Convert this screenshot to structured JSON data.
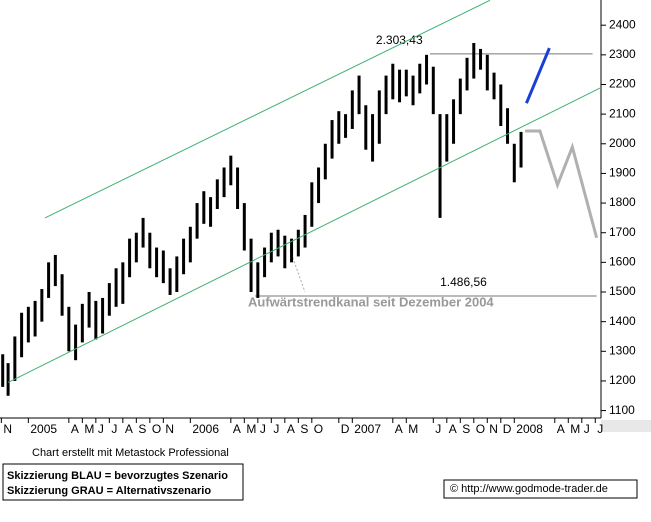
{
  "chart_data": {
    "type": "range_bar",
    "color": "#000000",
    "x": [
      -1.9,
      -1.5,
      -1.0,
      -0.5,
      0,
      0.5,
      1.0,
      1.5,
      2.0,
      2.5,
      3.0,
      3.5,
      4.0,
      4.5,
      5.0,
      5.5,
      6.0,
      6.5,
      7.0,
      7.5,
      8.0,
      8.5,
      9.0,
      9.5,
      10.0,
      10.5,
      11.0,
      11.5,
      12.0,
      12.5,
      13.0,
      13.5,
      14.0,
      14.5,
      15.0,
      15.5,
      16.0,
      16.5,
      17.0,
      17.5,
      18.0,
      18.5,
      19.0,
      19.5,
      20.0,
      20.5,
      21.0,
      21.5,
      22.0,
      22.5,
      23.0,
      23.5,
      24.0,
      24.5,
      25.0,
      25.5,
      26.0,
      26.5,
      27.0,
      27.5,
      28.0,
      28.5,
      29.0,
      29.5,
      30.0,
      30.5,
      31.0,
      31.5,
      32.0,
      32.5,
      33.0,
      33.5,
      34.0,
      34.5,
      35.0,
      35.5,
      36.0,
      36.5
    ],
    "low": [
      1180,
      1150,
      1200,
      1280,
      1330,
      1350,
      1400,
      1480,
      1520,
      1420,
      1300,
      1270,
      1330,
      1380,
      1340,
      1360,
      1420,
      1450,
      1460,
      1550,
      1600,
      1650,
      1580,
      1550,
      1530,
      1490,
      1500,
      1560,
      1600,
      1680,
      1730,
      1720,
      1780,
      1820,
      1860,
      1780,
      1640,
      1500,
      1480,
      1550,
      1600,
      1620,
      1580,
      1600,
      1620,
      1650,
      1720,
      1800,
      1880,
      1950,
      2000,
      2020,
      2050,
      2100,
      1980,
      1940,
      2000,
      2100,
      2150,
      2140,
      2160,
      2130,
      2170,
      2200,
      2100,
      1750,
      1940,
      2000,
      2100,
      2180,
      2220,
      2250,
      2180,
      2150,
      2060,
      2000,
      1870,
      1920
    ],
    "high": [
      1290,
      1260,
      1350,
      1430,
      1450,
      1470,
      1510,
      1600,
      1625,
      1560,
      1450,
      1390,
      1460,
      1500,
      1470,
      1480,
      1530,
      1580,
      1600,
      1680,
      1700,
      1750,
      1700,
      1650,
      1640,
      1580,
      1620,
      1680,
      1720,
      1800,
      1840,
      1820,
      1880,
      1920,
      1960,
      1920,
      1800,
      1680,
      1600,
      1650,
      1700,
      1710,
      1690,
      1680,
      1710,
      1760,
      1870,
      1920,
      2000,
      2080,
      2110,
      2100,
      2180,
      2230,
      2130,
      2100,
      2180,
      2230,
      2270,
      2250,
      2250,
      2230,
      2270,
      2300,
      2260,
      2100,
      2100,
      2150,
      2220,
      2290,
      2340,
      2320,
      2300,
      2240,
      2200,
      2120,
      2000,
      2040
    ],
    "xlim": [
      -2.1,
      42.35
    ],
    "ylim": [
      1075,
      2485
    ],
    "xticks": [
      {
        "value": -2,
        "label": "N"
      },
      {
        "value": 0,
        "label": "2005"
      },
      {
        "value": 3,
        "label": "A"
      },
      {
        "value": 4,
        "label": "M"
      },
      {
        "value": 5,
        "label": "J"
      },
      {
        "value": 6,
        "label": "J"
      },
      {
        "value": 7,
        "label": "A"
      },
      {
        "value": 8,
        "label": "S"
      },
      {
        "value": 9,
        "label": "O"
      },
      {
        "value": 10,
        "label": "N"
      },
      {
        "value": 12,
        "label": "2006"
      },
      {
        "value": 15,
        "label": "A"
      },
      {
        "value": 16,
        "label": "M"
      },
      {
        "value": 17,
        "label": "J"
      },
      {
        "value": 18,
        "label": "J"
      },
      {
        "value": 19,
        "label": "A"
      },
      {
        "value": 20,
        "label": "S"
      },
      {
        "value": 21,
        "label": "O"
      },
      {
        "value": 23,
        "label": "D"
      },
      {
        "value": 24,
        "label": "2007"
      },
      {
        "value": 27,
        "label": "A"
      },
      {
        "value": 28,
        "label": "M"
      },
      {
        "value": 30,
        "label": "J"
      },
      {
        "value": 31,
        "label": "A"
      },
      {
        "value": 32,
        "label": "S"
      },
      {
        "value": 33,
        "label": "O"
      },
      {
        "value": 34,
        "label": "N"
      },
      {
        "value": 35,
        "label": "D"
      },
      {
        "value": 36,
        "label": "2008"
      },
      {
        "value": 39,
        "label": "A"
      },
      {
        "value": 40,
        "label": "M"
      },
      {
        "value": 41,
        "label": "J"
      },
      {
        "value": 42,
        "label": "J"
      }
    ],
    "yticks": [
      1100,
      1200,
      1300,
      1400,
      1500,
      1600,
      1700,
      1800,
      1900,
      2000,
      2100,
      2200,
      2300,
      2400
    ],
    "lines": [
      {
        "color": "#3cb371",
        "x": [
          1.23,
          34.2
        ],
        "y": [
          1750,
          2484
        ]
      },
      {
        "color": "#3cb371",
        "x": [
          -1.5,
          42.35
        ],
        "y": [
          1195,
          2188
        ]
      },
      {
        "color": "#1a3fd6",
        "x": [
          36.9,
          38.6
        ],
        "y": [
          2137,
          2323
        ]
      },
      {
        "color": "#b0b0b0",
        "x": [
          36.8,
          37.9,
          39.2,
          40.3,
          42.1
        ],
        "y": [
          2043,
          2043,
          1861,
          1989,
          1683
        ]
      }
    ],
    "levels": [
      {
        "value": 2303.43,
        "label": "2.303,43",
        "x": [
          29.75,
          41.8
        ]
      },
      {
        "value": 1486.56,
        "label": "1.486,56",
        "x": [
          16.8,
          42.1
        ]
      }
    ],
    "annotation": "Aufwärtstrendkanal seit Dezember 2004",
    "credit": "Chart erstellt mit Metastock Professional",
    "legend": [
      "Skizzierung BLAU = bevorzugtes Szenario",
      "Skizzierung GRAU = Alternativszenario"
    ],
    "source": "© http://www.godmode-trader.de"
  }
}
